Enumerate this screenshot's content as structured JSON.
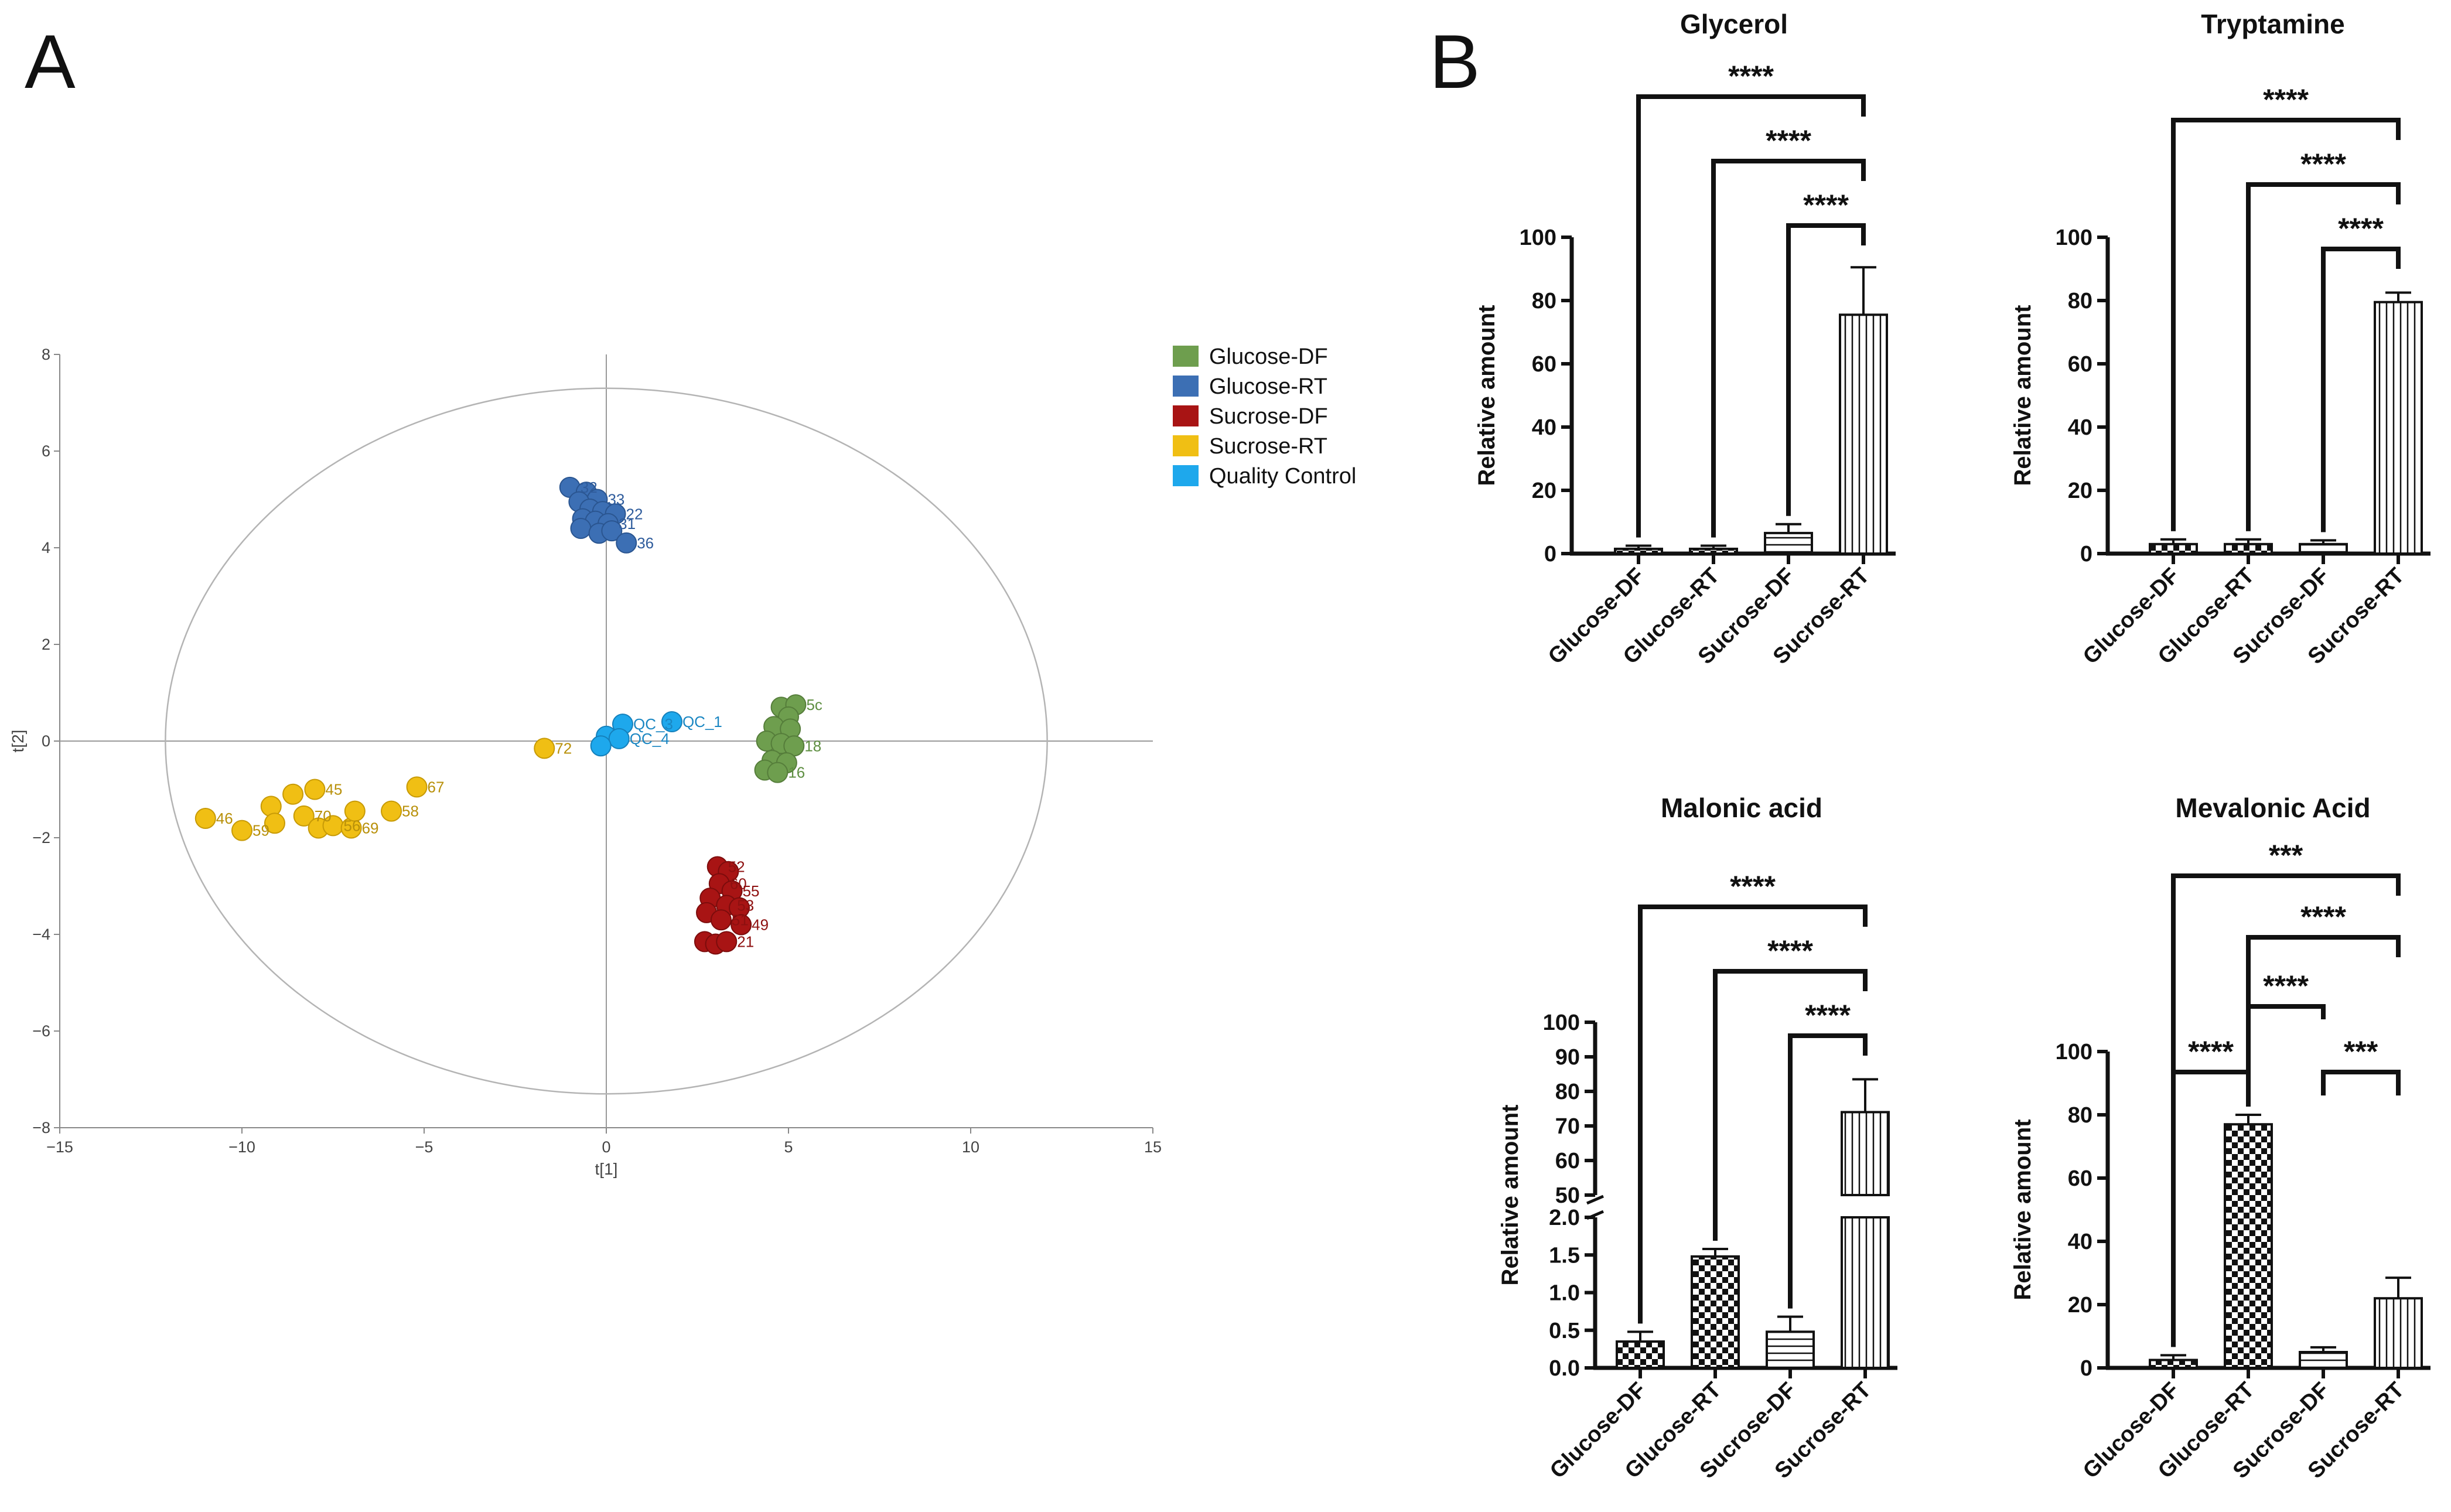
{
  "panels": {
    "a_label": "A",
    "b_label": "B"
  },
  "colors": {
    "Glucose-DF": "#6e9e4e",
    "Glucose-RT": "#3c6fb4",
    "Sucrose-DF": "#a81414",
    "Sucrose-RT": "#f0bf14",
    "Quality Control": "#1ea8ec",
    "axis_grey": "#888888",
    "ellipse": "#b4b4b4"
  },
  "chart_data": [
    {
      "type": "scatter",
      "panel": "A",
      "xlabel": "t[1]",
      "ylabel": "t[2]",
      "xlim": [
        -15,
        15
      ],
      "ylim": [
        -8,
        8
      ],
      "xticks": [
        "-15",
        "-10",
        "-5",
        "0",
        "5",
        "10",
        "15"
      ],
      "yticks": [
        "8",
        "6",
        "4",
        "2",
        "0",
        "-2",
        "-4",
        "-6",
        "-8"
      ],
      "ellipse": {
        "rx": 12.1,
        "ry": 7.3
      },
      "legend": [
        "Glucose-DF",
        "Glucose-RT",
        "Sucrose-DF",
        "Sucrose-RT",
        "Quality Control"
      ],
      "series": [
        {
          "name": "Glucose-RT",
          "points": [
            {
              "x": -1.0,
              "y": 5.25,
              "label": "32"
            },
            {
              "x": -0.55,
              "y": 5.15,
              "label": ""
            },
            {
              "x": -0.25,
              "y": 5.0,
              "label": "33"
            },
            {
              "x": -0.75,
              "y": 4.95,
              "label": ""
            },
            {
              "x": -0.45,
              "y": 4.8,
              "label": ""
            },
            {
              "x": -0.1,
              "y": 4.75,
              "label": ""
            },
            {
              "x": 0.25,
              "y": 4.7,
              "label": "22"
            },
            {
              "x": -0.65,
              "y": 4.6,
              "label": ""
            },
            {
              "x": -0.3,
              "y": 4.55,
              "label": ""
            },
            {
              "x": 0.05,
              "y": 4.5,
              "label": "31"
            },
            {
              "x": -0.7,
              "y": 4.4,
              "label": ""
            },
            {
              "x": -0.2,
              "y": 4.3,
              "label": ""
            },
            {
              "x": 0.15,
              "y": 4.35,
              "label": ""
            },
            {
              "x": 0.55,
              "y": 4.1,
              "label": "36"
            }
          ]
        },
        {
          "name": "Glucose-DF",
          "points": [
            {
              "x": 4.8,
              "y": 0.7,
              "label": ""
            },
            {
              "x": 5.2,
              "y": 0.75,
              "label": "5c"
            },
            {
              "x": 5.0,
              "y": 0.5,
              "label": ""
            },
            {
              "x": 4.6,
              "y": 0.3,
              "label": ""
            },
            {
              "x": 5.05,
              "y": 0.25,
              "label": ""
            },
            {
              "x": 4.4,
              "y": 0.0,
              "label": ""
            },
            {
              "x": 4.8,
              "y": -0.05,
              "label": ""
            },
            {
              "x": 5.15,
              "y": -0.1,
              "label": "18"
            },
            {
              "x": 4.55,
              "y": -0.4,
              "label": ""
            },
            {
              "x": 4.95,
              "y": -0.45,
              "label": ""
            },
            {
              "x": 4.35,
              "y": -0.6,
              "label": ""
            },
            {
              "x": 4.7,
              "y": -0.65,
              "label": "16"
            }
          ]
        },
        {
          "name": "Sucrose-DF",
          "points": [
            {
              "x": 3.05,
              "y": -2.6,
              "label": "52"
            },
            {
              "x": 3.35,
              "y": -2.7,
              "label": ""
            },
            {
              "x": 3.1,
              "y": -2.95,
              "label": "60"
            },
            {
              "x": 3.45,
              "y": -3.1,
              "label": "55"
            },
            {
              "x": 2.85,
              "y": -3.25,
              "label": ""
            },
            {
              "x": 3.3,
              "y": -3.4,
              "label": "53"
            },
            {
              "x": 3.65,
              "y": -3.45,
              "label": ""
            },
            {
              "x": 2.75,
              "y": -3.55,
              "label": ""
            },
            {
              "x": 3.15,
              "y": -3.7,
              "label": "51"
            },
            {
              "x": 3.7,
              "y": -3.8,
              "label": "49"
            },
            {
              "x": 2.7,
              "y": -4.15,
              "label": ""
            },
            {
              "x": 3.0,
              "y": -4.2,
              "label": ""
            },
            {
              "x": 3.3,
              "y": -4.15,
              "label": "21"
            }
          ]
        },
        {
          "name": "Sucrose-RT",
          "points": [
            {
              "x": -11.0,
              "y": -1.6,
              "label": "46"
            },
            {
              "x": -10.0,
              "y": -1.85,
              "label": "59"
            },
            {
              "x": -9.2,
              "y": -1.35,
              "label": ""
            },
            {
              "x": -9.1,
              "y": -1.7,
              "label": ""
            },
            {
              "x": -8.6,
              "y": -1.1,
              "label": ""
            },
            {
              "x": -8.3,
              "y": -1.55,
              "label": "70"
            },
            {
              "x": -8.0,
              "y": -1.0,
              "label": "45"
            },
            {
              "x": -7.9,
              "y": -1.8,
              "label": ""
            },
            {
              "x": -7.5,
              "y": -1.75,
              "label": "56"
            },
            {
              "x": -7.0,
              "y": -1.8,
              "label": "69"
            },
            {
              "x": -6.9,
              "y": -1.45,
              "label": ""
            },
            {
              "x": -5.9,
              "y": -1.45,
              "label": "58"
            },
            {
              "x": -5.2,
              "y": -0.95,
              "label": "67"
            },
            {
              "x": -1.7,
              "y": -0.15,
              "label": "72"
            }
          ]
        },
        {
          "name": "Quality Control",
          "points": [
            {
              "x": 0.45,
              "y": 0.35,
              "label": "QC_3"
            },
            {
              "x": 1.8,
              "y": 0.4,
              "label": "QC_1"
            },
            {
              "x": 0.0,
              "y": 0.1,
              "label": ""
            },
            {
              "x": 0.35,
              "y": 0.05,
              "label": "QC_4"
            },
            {
              "x": -0.15,
              "y": -0.1,
              "label": ""
            }
          ]
        }
      ]
    },
    {
      "type": "bar",
      "panel": "B",
      "title": "Glycerol",
      "ylabel": "Relative amount",
      "categories": [
        "Glucose-DF",
        "Glucose-RT",
        "Sucrose-DF",
        "Sucrose-RT"
      ],
      "values": [
        1.5,
        1.5,
        6.5,
        75.5
      ],
      "errors": [
        1.0,
        1.0,
        2.8,
        15.0
      ],
      "ylim": [
        0,
        100
      ],
      "yticks": [
        "0",
        "20",
        "40",
        "60",
        "80",
        "100"
      ],
      "comparisons": [
        {
          "from": 0,
          "to": 3,
          "label": "****"
        },
        {
          "from": 1,
          "to": 3,
          "label": "****"
        },
        {
          "from": 2,
          "to": 3,
          "label": "****"
        }
      ]
    },
    {
      "type": "bar",
      "panel": "B",
      "title": "Tryptamine",
      "ylabel": "Relative amount",
      "categories": [
        "Glucose-DF",
        "Glucose-RT",
        "Sucrose-DF",
        "Sucrose-RT"
      ],
      "values": [
        3.0,
        3.0,
        3.0,
        79.5
      ],
      "errors": [
        1.5,
        1.5,
        1.2,
        3.0
      ],
      "ylim": [
        0,
        100
      ],
      "yticks": [
        "0",
        "20",
        "40",
        "60",
        "80",
        "100"
      ],
      "comparisons": [
        {
          "from": 0,
          "to": 3,
          "label": "****"
        },
        {
          "from": 1,
          "to": 3,
          "label": "****"
        },
        {
          "from": 2,
          "to": 3,
          "label": "****"
        }
      ]
    },
    {
      "type": "bar",
      "panel": "B",
      "title": "Malonic acid",
      "ylabel": "Relative amount",
      "categories": [
        "Glucose-DF",
        "Glucose-RT",
        "Sucrose-DF",
        "Sucrose-RT"
      ],
      "values": [
        0.35,
        1.48,
        0.48,
        74.0
      ],
      "errors": [
        0.13,
        0.1,
        0.2,
        9.5
      ],
      "broken_axis": {
        "lower": [
          0,
          2.0
        ],
        "upper": [
          50,
          100
        ],
        "lower_ticks": [
          "0.0",
          "0.5",
          "1.0",
          "1.5",
          "2.0"
        ],
        "upper_ticks": [
          "50",
          "60",
          "70",
          "80",
          "90",
          "100"
        ]
      },
      "comparisons": [
        {
          "from": 0,
          "to": 3,
          "label": "****"
        },
        {
          "from": 1,
          "to": 3,
          "label": "****"
        },
        {
          "from": 2,
          "to": 3,
          "label": "****"
        }
      ]
    },
    {
      "type": "bar",
      "panel": "B",
      "title": "Mevalonic Acid",
      "ylabel": "Relative amount",
      "categories": [
        "Glucose-DF",
        "Glucose-RT",
        "Sucrose-DF",
        "Sucrose-RT"
      ],
      "values": [
        2.5,
        77.0,
        5.0,
        22.0
      ],
      "errors": [
        1.5,
        3.0,
        1.5,
        6.5
      ],
      "ylim": [
        0,
        100
      ],
      "yticks": [
        "0",
        "20",
        "40",
        "60",
        "80",
        "100"
      ],
      "comparisons": [
        {
          "from": 0,
          "to": 3,
          "label": "***"
        },
        {
          "from": 1,
          "to": 3,
          "label": "****"
        },
        {
          "from": 1,
          "to": 2,
          "label": "****"
        },
        {
          "from": 0,
          "to": 1,
          "label": "****"
        },
        {
          "from": 2,
          "to": 3,
          "label": "***"
        }
      ]
    }
  ]
}
